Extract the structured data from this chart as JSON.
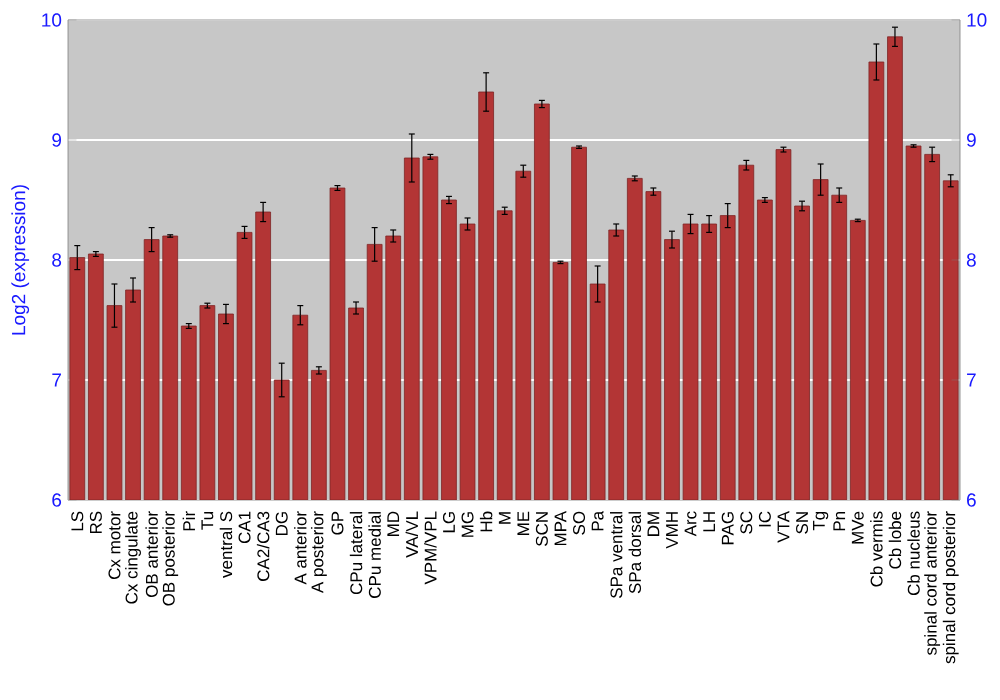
{
  "chart_data": {
    "type": "bar",
    "ylabel": "Log2 (expression)",
    "categories": [
      "LS",
      "RS",
      "Cx motor",
      "Cx cingulate",
      "OB anterior",
      "OB posterior",
      "Pir",
      "Tu",
      "ventral S",
      "CA1",
      "CA2/CA3",
      "DG",
      "A anterior",
      "A posterior",
      "GP",
      "CPu lateral",
      "CPu medial",
      "MD",
      "VA/VL",
      "VPM/VPL",
      "LG",
      "MG",
      "Hb",
      "M",
      "ME",
      "SCN",
      "MPA",
      "SO",
      "Pa",
      "SPa ventral",
      "SPa dorsal",
      "DM",
      "VMH",
      "Arc",
      "LH",
      "PAG",
      "SC",
      "IC",
      "VTA",
      "SN",
      "Tg",
      "Pn",
      "MVe",
      "Cb vermis",
      "Cb lobe",
      "Cb nucleus",
      "spinal cord anterior",
      "spinal cord posterior"
    ],
    "values": [
      8.02,
      8.05,
      7.62,
      7.75,
      8.17,
      8.2,
      7.45,
      7.62,
      7.55,
      8.23,
      8.4,
      7.0,
      7.54,
      7.08,
      8.6,
      7.6,
      8.13,
      8.2,
      8.85,
      8.86,
      8.5,
      8.3,
      9.4,
      8.41,
      8.74,
      9.3,
      7.98,
      8.94,
      7.8,
      8.25,
      8.68,
      8.57,
      8.17,
      8.3,
      8.3,
      8.37,
      8.79,
      8.5,
      8.92,
      8.45,
      8.67,
      8.54,
      8.33,
      9.65,
      9.86,
      8.95,
      8.88,
      8.66
    ],
    "errors": [
      0.1,
      0.02,
      0.18,
      0.1,
      0.1,
      0.01,
      0.02,
      0.02,
      0.08,
      0.05,
      0.08,
      0.14,
      0.08,
      0.03,
      0.02,
      0.05,
      0.14,
      0.05,
      0.2,
      0.02,
      0.03,
      0.05,
      0.16,
      0.03,
      0.05,
      0.03,
      0.01,
      0.01,
      0.15,
      0.05,
      0.02,
      0.03,
      0.07,
      0.08,
      0.07,
      0.1,
      0.04,
      0.02,
      0.02,
      0.04,
      0.13,
      0.06,
      0.01,
      0.15,
      0.08,
      0.01,
      0.06,
      0.05
    ],
    "color": "#b33535",
    "ylim": [
      6,
      10
    ],
    "yticks": [
      6,
      7,
      8,
      9,
      10
    ],
    "y2lim": [
      6,
      10
    ],
    "y2ticks": [
      6,
      7,
      8,
      9,
      10
    ],
    "grid": "y"
  }
}
